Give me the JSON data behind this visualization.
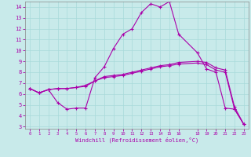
{
  "xlabel": "Windchill (Refroidissement éolien,°C)",
  "bg_color": "#c8eaea",
  "line_color": "#aa00aa",
  "xmin": -0.5,
  "xmax": 23.5,
  "ymin": 2.8,
  "ymax": 14.5,
  "xticks": [
    0,
    1,
    2,
    3,
    4,
    5,
    6,
    7,
    8,
    9,
    10,
    11,
    12,
    13,
    14,
    15,
    16,
    18,
    19,
    20,
    21,
    22,
    23
  ],
  "yticks": [
    3,
    4,
    5,
    6,
    7,
    8,
    9,
    10,
    11,
    12,
    13,
    14
  ],
  "line1_x": [
    0,
    1,
    2,
    3,
    4,
    5,
    6,
    7,
    8,
    9,
    10,
    11,
    12,
    13,
    14,
    15,
    16,
    18,
    19,
    20,
    21,
    22,
    23
  ],
  "line1_y": [
    6.5,
    6.1,
    6.4,
    5.2,
    4.6,
    4.7,
    4.7,
    7.5,
    8.5,
    10.2,
    11.5,
    12.0,
    13.5,
    14.3,
    14.0,
    14.5,
    11.5,
    9.8,
    8.3,
    8.0,
    4.7,
    4.6,
    3.2
  ],
  "line2_x": [
    0,
    1,
    2,
    3,
    4,
    5,
    6,
    7,
    8,
    9,
    10,
    11,
    12,
    13,
    14,
    15,
    16,
    18,
    19,
    20,
    21,
    22,
    23
  ],
  "line2_y": [
    6.5,
    6.1,
    6.4,
    6.5,
    6.5,
    6.6,
    6.8,
    7.2,
    7.6,
    7.7,
    7.8,
    8.0,
    8.2,
    8.4,
    8.6,
    8.7,
    8.9,
    9.0,
    8.9,
    8.4,
    8.2,
    4.8,
    3.2
  ],
  "line3_x": [
    0,
    1,
    2,
    3,
    4,
    5,
    6,
    7,
    8,
    9,
    10,
    11,
    12,
    13,
    14,
    15,
    16,
    18,
    19,
    20,
    21,
    22,
    23
  ],
  "line3_y": [
    6.5,
    6.1,
    6.4,
    6.5,
    6.5,
    6.6,
    6.7,
    7.2,
    7.5,
    7.6,
    7.7,
    7.9,
    8.1,
    8.3,
    8.5,
    8.6,
    8.75,
    8.85,
    8.7,
    8.2,
    8.0,
    4.6,
    3.2
  ]
}
